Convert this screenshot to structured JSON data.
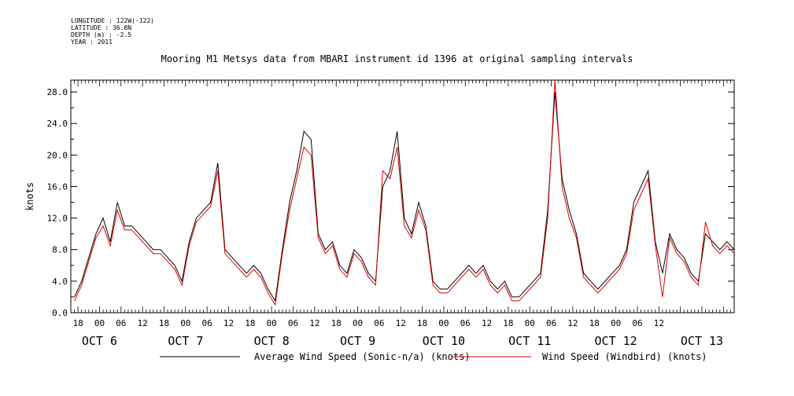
{
  "header": {
    "meta_lines": [
      "LONGITUDE : 122W(-122)",
      "LATITUDE : 36.8N",
      "DEPTH (m) : -2.5",
      "YEAR : 2011"
    ],
    "title": "Mooring M1 Metsys data from MBARI instrument id 1396 at original sampling intervals"
  },
  "colors": {
    "series_black": "#000000",
    "series_red": "#dd0000"
  },
  "chart_data": {
    "type": "line",
    "title": "Mooring M1 Metsys data from MBARI instrument id 1396 at original sampling intervals",
    "ylabel": "knots",
    "xlabel": "",
    "ylim": [
      0,
      29.5
    ],
    "yticks": [
      "0.0",
      "4.0",
      "8.0",
      "12.0",
      "16.0",
      "20.0",
      "24.0",
      "28.0"
    ],
    "xlim_hours": [
      -8,
      177
    ],
    "x_hour_labels": [
      "18",
      "00",
      "06",
      "12",
      "18",
      "00",
      "06",
      "12",
      "18",
      "00",
      "06",
      "12",
      "18",
      "00",
      "06",
      "12",
      "18",
      "00",
      "06",
      "12",
      "18",
      "00",
      "06",
      "12",
      "18",
      "00",
      "06",
      "12"
    ],
    "x_day_labels": [
      "OCT  6",
      "OCT  7",
      "OCT  8",
      "OCT  9",
      "OCT 10",
      "OCT 11",
      "OCT 12",
      "OCT 13"
    ],
    "x_unit": "hours since OCT 6 00:00",
    "grid": false,
    "legend": "bottom",
    "series": [
      {
        "name": "Average Wind Speed (Sonic-n/a) (knots)",
        "color": "#000000",
        "x": [
          -7,
          -5,
          -3,
          -1,
          1,
          3,
          5,
          7,
          9,
          11,
          13,
          15,
          17,
          19,
          21,
          23,
          25,
          27,
          29,
          31,
          33,
          35,
          37,
          39,
          41,
          43,
          45,
          47,
          49,
          51,
          53,
          55,
          57,
          59,
          61,
          63,
          65,
          67,
          69,
          71,
          73,
          75,
          77,
          79,
          81,
          83,
          85,
          87,
          89,
          91,
          93,
          95,
          97,
          99,
          101,
          103,
          105,
          107,
          109,
          111,
          113,
          115,
          117,
          119,
          121,
          123,
          125,
          127,
          129,
          131,
          133,
          135,
          137,
          139,
          141,
          143,
          145,
          147,
          149,
          151,
          153,
          155,
          157,
          159,
          161,
          163,
          165,
          167,
          169,
          171,
          173,
          175,
          177
        ],
        "y": [
          2,
          4,
          7,
          10,
          12,
          9,
          14,
          11,
          11,
          10,
          9,
          8,
          8,
          7,
          6,
          4,
          9,
          12,
          13,
          14,
          19,
          8,
          7,
          6,
          5,
          6,
          5,
          3,
          1.5,
          8,
          14,
          18,
          23,
          22,
          10,
          8,
          9,
          6,
          5,
          8,
          7,
          5,
          4,
          16,
          18,
          23,
          12,
          10,
          14,
          11,
          4,
          3,
          3,
          4,
          5,
          6,
          5,
          6,
          4,
          3,
          4,
          2,
          2,
          3,
          4,
          5,
          13,
          28,
          17,
          13,
          10,
          5,
          4,
          3,
          4,
          5,
          6,
          8,
          14,
          16,
          18,
          9,
          5,
          10,
          8,
          7,
          5,
          4,
          10,
          9,
          8,
          9,
          8
        ],
        "note": "values read approximately from the plot"
      },
      {
        "name": "Wind Speed (Windbird) (knots)",
        "color": "#dd0000",
        "x": [
          -7,
          -5,
          -3,
          -1,
          1,
          3,
          5,
          7,
          9,
          11,
          13,
          15,
          17,
          19,
          21,
          23,
          25,
          27,
          29,
          31,
          33,
          35,
          37,
          39,
          41,
          43,
          45,
          47,
          49,
          51,
          53,
          55,
          57,
          59,
          61,
          63,
          65,
          67,
          69,
          71,
          73,
          75,
          77,
          79,
          81,
          83,
          85,
          87,
          89,
          91,
          93,
          95,
          97,
          99,
          101,
          103,
          105,
          107,
          109,
          111,
          113,
          115,
          117,
          119,
          121,
          123,
          125,
          127,
          129,
          131,
          133,
          135,
          137,
          139,
          141,
          143,
          145,
          147,
          149,
          151,
          153,
          155,
          157,
          159,
          161,
          163,
          165,
          167,
          169,
          171,
          173,
          175,
          177
        ],
        "y": [
          1.5,
          3.5,
          6.5,
          9.5,
          11,
          8.5,
          13,
          10.5,
          10.5,
          9.5,
          8.5,
          7.5,
          7.5,
          6.5,
          5.5,
          3.5,
          8.5,
          11.5,
          12.5,
          13.5,
          18,
          7.5,
          6.5,
          5.5,
          4.5,
          5.5,
          4.5,
          2.5,
          1,
          7.5,
          13,
          17,
          21,
          20,
          9.5,
          7.5,
          8.5,
          5.5,
          4.5,
          7.5,
          6.5,
          4.5,
          3.5,
          18,
          17,
          21,
          11,
          9.5,
          13,
          10.5,
          3.5,
          2.5,
          2.5,
          3.5,
          4.5,
          5.5,
          4.5,
          5.5,
          3.5,
          2.5,
          3.5,
          1.5,
          1.5,
          2.5,
          3.5,
          4.5,
          12,
          29.5,
          16,
          12,
          9.5,
          4.5,
          3.5,
          2.5,
          3.5,
          4.5,
          5.5,
          7.5,
          13,
          15,
          17,
          8.5,
          2,
          9.5,
          7.5,
          6.5,
          4.5,
          3.5,
          11.5,
          8.5,
          7.5,
          8.5,
          7.5
        ]
      }
    ]
  }
}
